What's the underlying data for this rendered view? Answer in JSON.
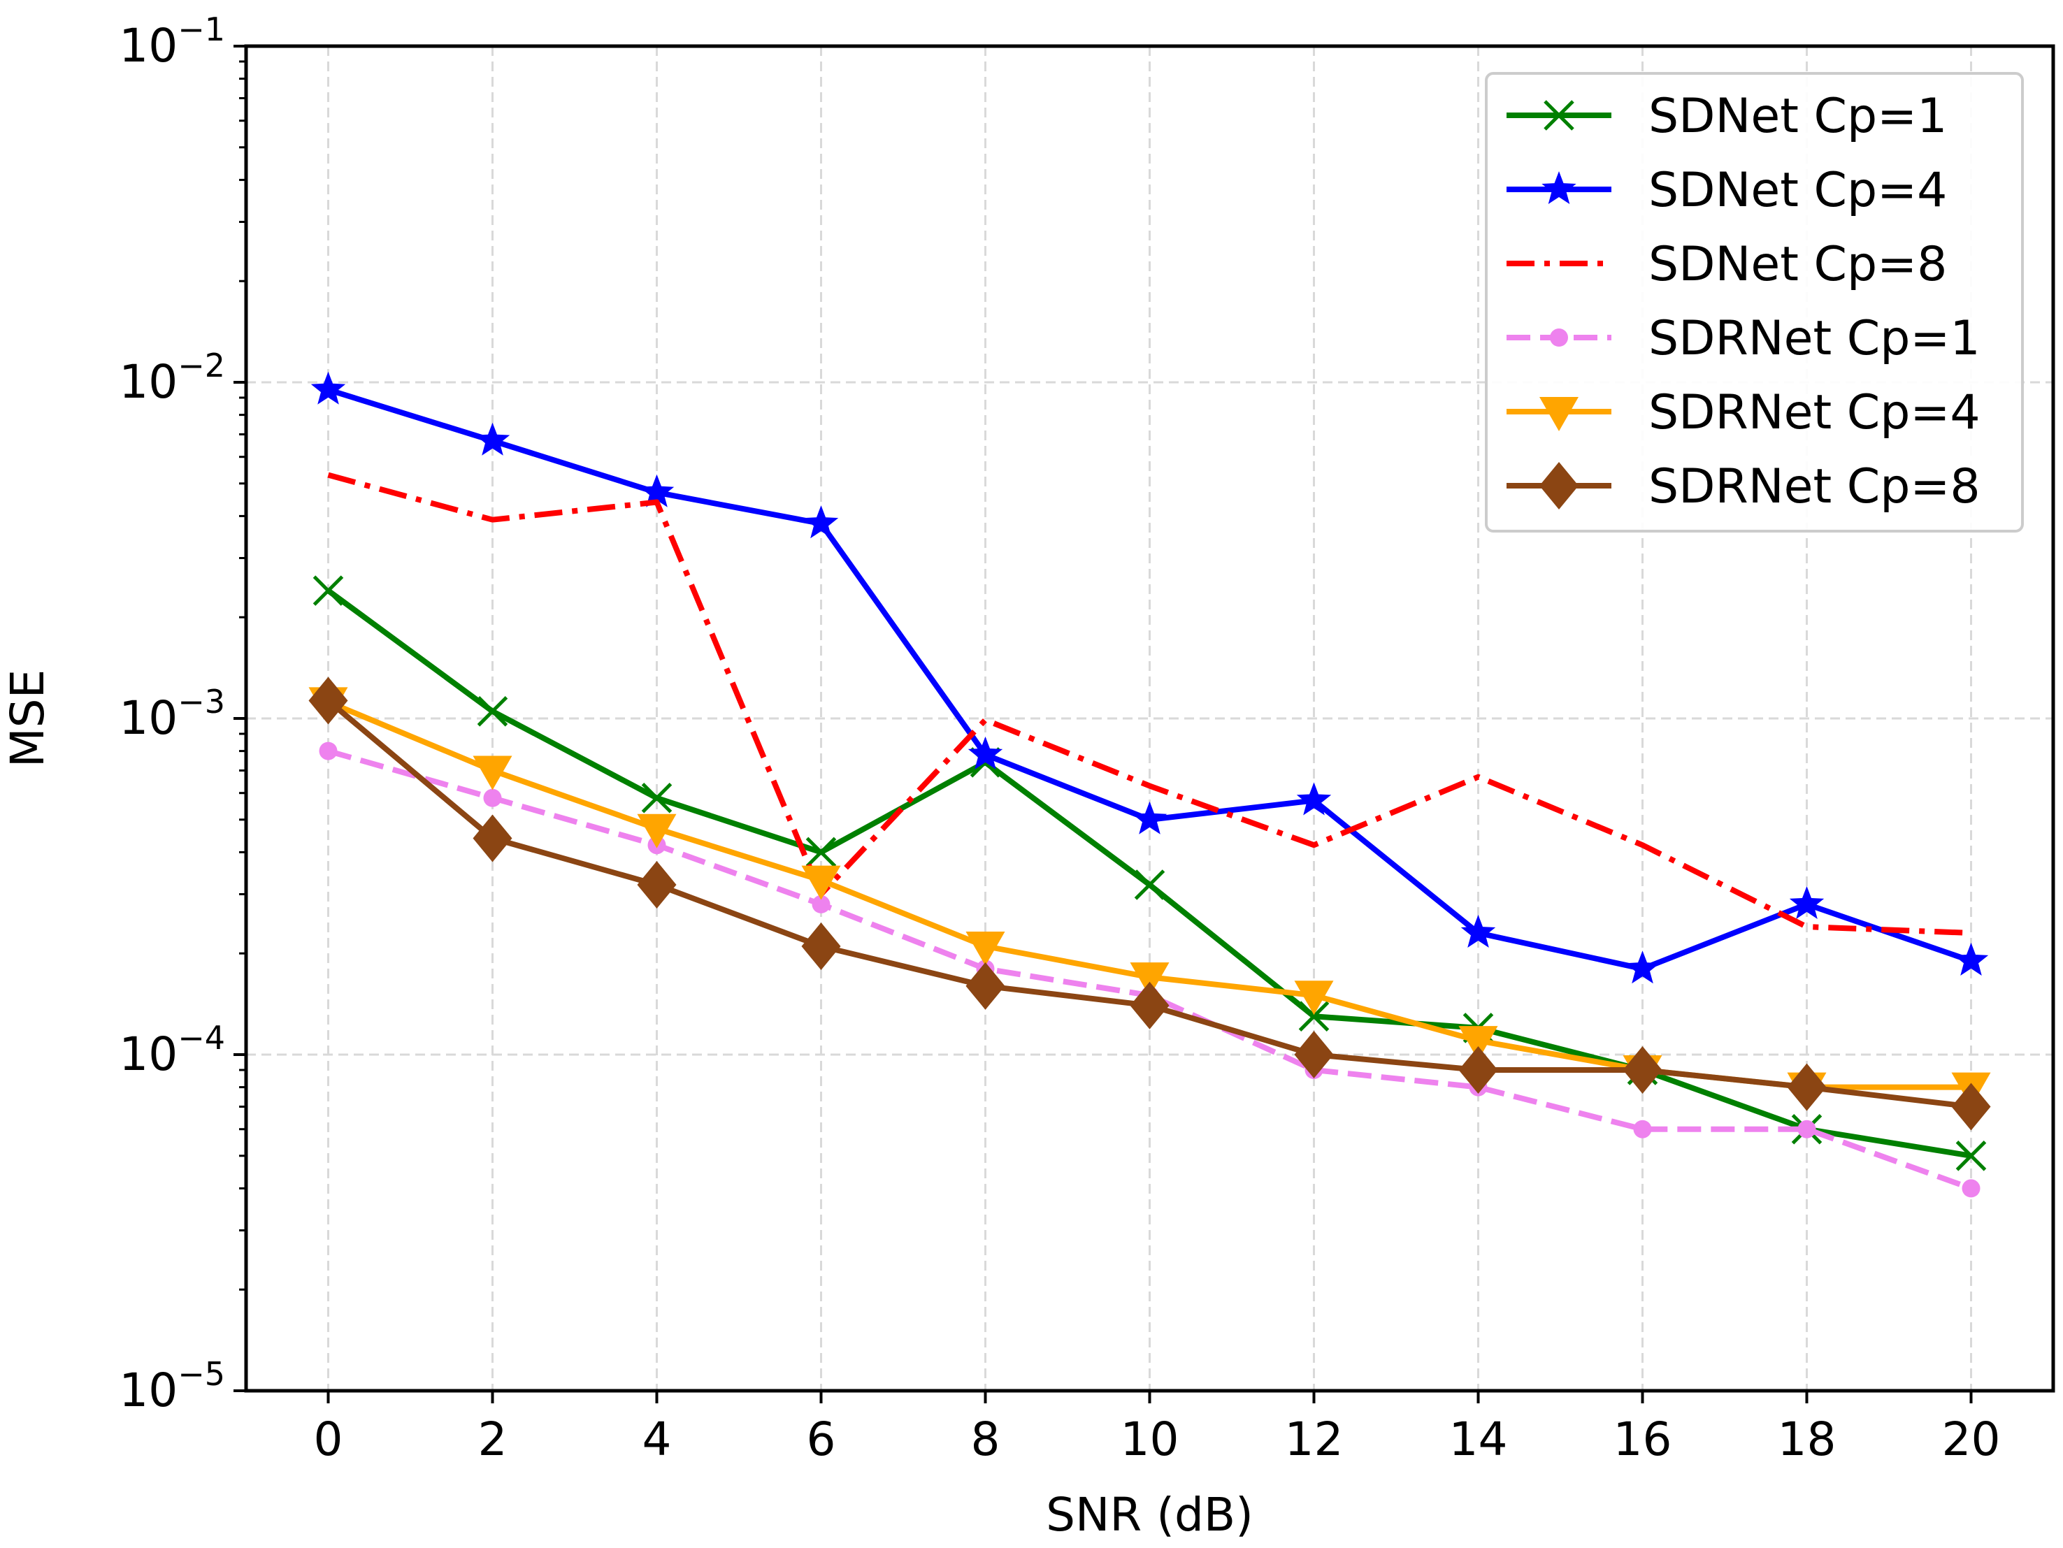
{
  "chart_data": {
    "type": "line",
    "title": "",
    "xlabel": "SNR (dB)",
    "ylabel": "MSE",
    "yscale": "log",
    "xlim": [
      -1,
      21
    ],
    "ylim": [
      1e-05,
      0.1
    ],
    "grid": true,
    "legend_position": "top-right",
    "x": [
      0,
      2,
      4,
      6,
      8,
      10,
      12,
      14,
      16,
      18,
      20
    ],
    "x_tick_labels": [
      "0",
      "2",
      "4",
      "6",
      "8",
      "10",
      "12",
      "14",
      "16",
      "18",
      "20"
    ],
    "y_tick_labels": [
      {
        "value": 1e-05,
        "base": "10",
        "exp": "−5"
      },
      {
        "value": 0.0001,
        "base": "10",
        "exp": "−4"
      },
      {
        "value": 0.001,
        "base": "10",
        "exp": "−3"
      },
      {
        "value": 0.01,
        "base": "10",
        "exp": "−2"
      },
      {
        "value": 0.1,
        "base": "10",
        "exp": "−1"
      }
    ],
    "series": [
      {
        "name": "SDNet Cp=1",
        "color": "#008000",
        "line": "solid",
        "marker": "x",
        "values": [
          0.0024,
          0.00105,
          0.00058,
          0.0004,
          0.00074,
          0.00032,
          0.00013,
          0.00012,
          9e-05,
          6e-05,
          5e-05
        ]
      },
      {
        "name": "SDNet Cp=4",
        "color": "#0000ff",
        "line": "solid",
        "marker": "star",
        "values": [
          0.0095,
          0.0067,
          0.0047,
          0.0038,
          0.00078,
          0.0005,
          0.00057,
          0.00023,
          0.00018,
          0.00028,
          0.00019
        ]
      },
      {
        "name": "SDNet Cp=8",
        "color": "#ff0000",
        "line": "dashdot",
        "marker": "none",
        "values": [
          0.0053,
          0.0039,
          0.0044,
          0.0003,
          0.00099,
          0.00063,
          0.00042,
          0.00067,
          0.00042,
          0.00024,
          0.00023
        ]
      },
      {
        "name": "SDRNet Cp=1",
        "color": "#ee82ee",
        "line": "dashed",
        "marker": "circle",
        "values": [
          0.0008,
          0.00058,
          0.00042,
          0.00028,
          0.00018,
          0.00015,
          9e-05,
          8e-05,
          6e-05,
          6e-05,
          4e-05
        ]
      },
      {
        "name": "SDRNet Cp=4",
        "color": "#ffa500",
        "line": "solid",
        "marker": "triangle-down",
        "values": [
          0.00112,
          0.0007,
          0.00047,
          0.00033,
          0.00021,
          0.00017,
          0.00015,
          0.00011,
          9e-05,
          8e-05,
          8e-05
        ]
      },
      {
        "name": "SDRNet Cp=8",
        "color": "#8b4513",
        "line": "solid",
        "marker": "diamond",
        "values": [
          0.00113,
          0.00044,
          0.00032,
          0.00021,
          0.00016,
          0.00014,
          0.0001,
          9e-05,
          9e-05,
          8e-05,
          7e-05
        ]
      }
    ]
  }
}
